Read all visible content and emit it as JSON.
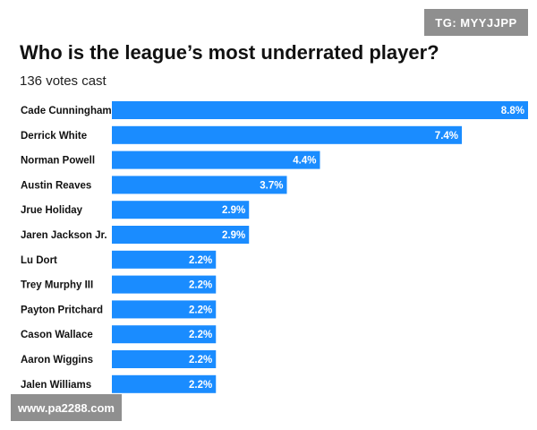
{
  "watermarks": {
    "top_right": "TG: MYYJJPP",
    "bottom_left": "www.pa2288.com"
  },
  "colors": {
    "bar": "#1a8cff"
  },
  "chart_data": {
    "type": "bar",
    "orientation": "horizontal",
    "title": "Who is the league’s most underrated player?",
    "subtitle": "136 votes cast",
    "categories": [
      "Cade Cunningham",
      "Derrick White",
      "Norman Powell",
      "Austin Reaves",
      "Jrue Holiday",
      "Jaren Jackson Jr.",
      "Lu Dort",
      "Trey Murphy III",
      "Payton Pritchard",
      "Cason Wallace",
      "Aaron Wiggins",
      "Jalen Williams"
    ],
    "values": [
      8.8,
      7.4,
      4.4,
      3.7,
      2.9,
      2.9,
      2.2,
      2.2,
      2.2,
      2.2,
      2.2,
      2.2
    ],
    "value_labels": [
      "8.8%",
      "7.4%",
      "4.4%",
      "3.7%",
      "2.9%",
      "2.9%",
      "2.2%",
      "2.2%",
      "2.2%",
      "2.2%",
      "2.2%",
      "2.2%"
    ],
    "xlim": [
      0,
      8.8
    ],
    "grid": false,
    "legend": "none"
  }
}
